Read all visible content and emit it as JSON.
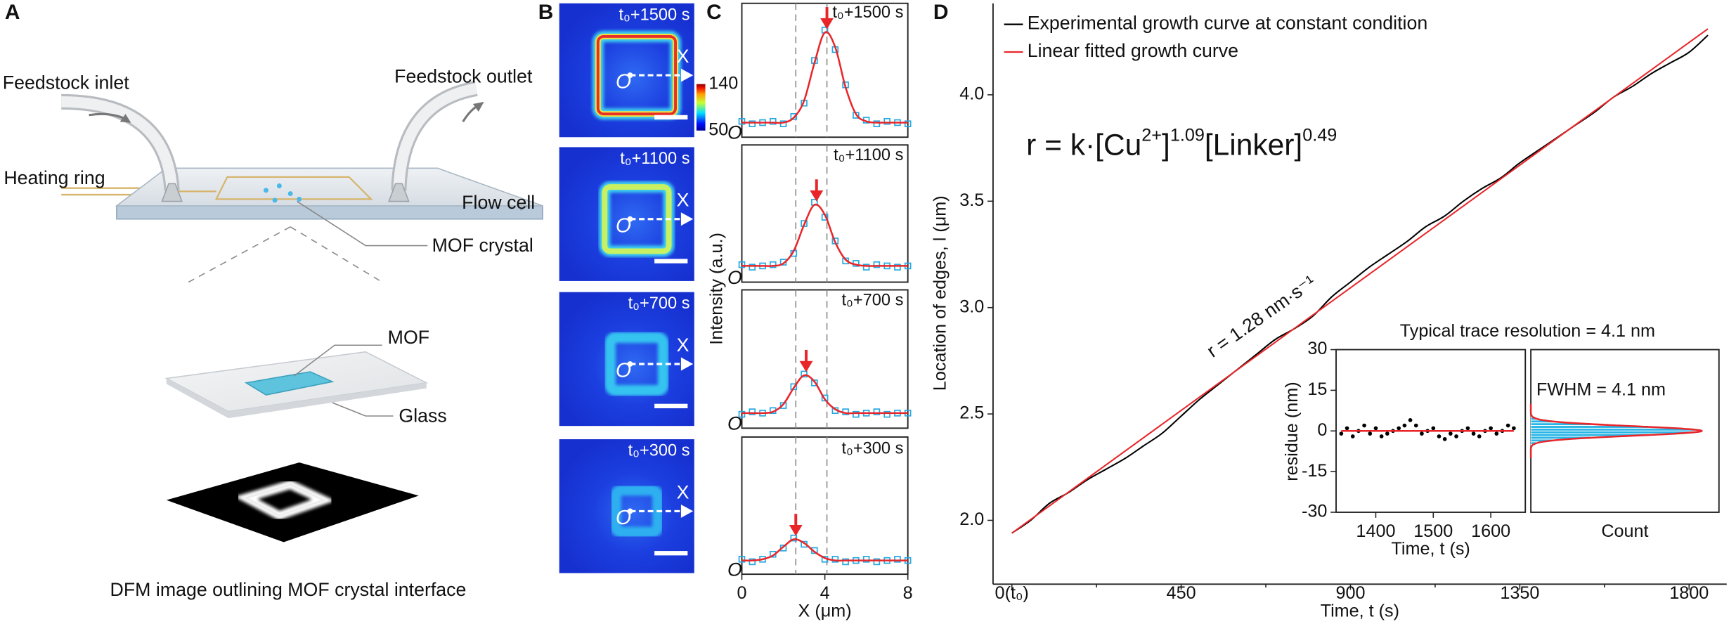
{
  "panel_labels": [
    "A",
    "B",
    "C",
    "D"
  ],
  "diagram": {
    "feedstock_inlet": "Feedstock inlet",
    "feedstock_outlet": "Feedstock outlet",
    "heating_ring": "Heating ring",
    "flow_cell": "Flow cell",
    "mof_crystal": "MOF crystal",
    "mof": "MOF",
    "glass": "Glass",
    "caption": "DFM image outlining MOF crystal interface"
  },
  "heatmaps": {
    "times": [
      "t₀+1500 s",
      "t₀+1100 s",
      "t₀+700 s",
      "t₀+300 s"
    ],
    "axis_label": "X",
    "origin_label": "O",
    "colorbar": {
      "clim": [
        50,
        140
      ],
      "ticks": [
        50,
        140
      ]
    }
  },
  "chart_data": [
    {
      "type": "line",
      "title": "t₀+1500 s",
      "ylabel": "Intensity (a.u.)",
      "origin_label": "O",
      "frame": true,
      "x": [
        0,
        0.5,
        1,
        1.5,
        2,
        2.5,
        3,
        3.5,
        4,
        4.5,
        5,
        5.5,
        6,
        6.5,
        7,
        7.5,
        8
      ],
      "xlim": [
        0,
        8
      ],
      "ylim": [
        0,
        1.1
      ],
      "markers": [
        2.6,
        4.1
      ],
      "peak_x": 4.1,
      "series": [
        {
          "color": "#29a9e0",
          "marker": "square",
          "values": [
            0.13,
            0.11,
            0.12,
            0.13,
            0.11,
            0.17,
            0.28,
            0.63,
            0.88,
            0.72,
            0.43,
            0.18,
            0.14,
            0.11,
            0.13,
            0.12,
            0.11
          ]
        },
        {
          "color": "#e8262a",
          "values": [
            0.12,
            0.12,
            0.12,
            0.12,
            0.12,
            0.16,
            0.3,
            0.61,
            0.86,
            0.74,
            0.41,
            0.19,
            0.13,
            0.12,
            0.12,
            0.12,
            0.12
          ]
        }
      ]
    },
    {
      "type": "line",
      "title": "t₀+1100 s",
      "origin_label": "O",
      "frame": true,
      "x": [
        0,
        0.5,
        1,
        1.5,
        2,
        2.5,
        3,
        3.5,
        4,
        4.5,
        5,
        5.5,
        6,
        6.5,
        7,
        7.5,
        8
      ],
      "xlim": [
        0,
        8
      ],
      "ylim": [
        0,
        1.1
      ],
      "markers": [
        2.6,
        4.1
      ],
      "peak_x": 3.6,
      "series": [
        {
          "color": "#29a9e0",
          "marker": "square",
          "values": [
            0.14,
            0.12,
            0.13,
            0.14,
            0.16,
            0.23,
            0.47,
            0.64,
            0.52,
            0.33,
            0.17,
            0.15,
            0.12,
            0.14,
            0.13,
            0.12,
            0.13
          ]
        },
        {
          "color": "#e8262a",
          "values": [
            0.13,
            0.13,
            0.13,
            0.13,
            0.15,
            0.25,
            0.46,
            0.62,
            0.54,
            0.32,
            0.18,
            0.14,
            0.13,
            0.13,
            0.13,
            0.13,
            0.13
          ]
        }
      ]
    },
    {
      "type": "line",
      "title": "t₀+700 s",
      "origin_label": "O",
      "frame": true,
      "x": [
        0,
        0.5,
        1,
        1.5,
        2,
        2.5,
        3,
        3.5,
        4,
        4.5,
        5,
        5.5,
        6,
        6.5,
        7,
        7.5,
        8
      ],
      "xlim": [
        0,
        8
      ],
      "ylim": [
        0,
        1.1
      ],
      "markers": [
        2.6,
        4.1
      ],
      "peak_x": 3.1,
      "series": [
        {
          "color": "#29a9e0",
          "marker": "square",
          "values": [
            0.11,
            0.13,
            0.12,
            0.14,
            0.18,
            0.33,
            0.43,
            0.36,
            0.24,
            0.14,
            0.13,
            0.11,
            0.12,
            0.13,
            0.11,
            0.12,
            0.12
          ]
        },
        {
          "color": "#e8262a",
          "values": [
            0.12,
            0.12,
            0.12,
            0.13,
            0.19,
            0.32,
            0.42,
            0.37,
            0.23,
            0.15,
            0.12,
            0.12,
            0.12,
            0.12,
            0.12,
            0.12,
            0.12
          ]
        }
      ]
    },
    {
      "type": "line",
      "title": "t₀+300 s",
      "origin_label": "O",
      "frame": true,
      "xlabel": "X (μm)",
      "xticks": [
        0,
        4,
        8
      ],
      "x": [
        0,
        0.5,
        1,
        1.5,
        2,
        2.5,
        3,
        3.5,
        4,
        4.5,
        5,
        5.5,
        6,
        6.5,
        7,
        7.5,
        8
      ],
      "xlim": [
        0,
        8
      ],
      "ylim": [
        0,
        1.1
      ],
      "markers": [
        2.6,
        4.1
      ],
      "peak_x": 2.6,
      "series": [
        {
          "color": "#29a9e0",
          "marker": "square",
          "values": [
            0.12,
            0.1,
            0.12,
            0.16,
            0.21,
            0.29,
            0.24,
            0.19,
            0.12,
            0.12,
            0.1,
            0.11,
            0.12,
            0.1,
            0.11,
            0.12,
            0.11
          ]
        },
        {
          "color": "#e8262a",
          "values": [
            0.11,
            0.11,
            0.12,
            0.15,
            0.22,
            0.28,
            0.25,
            0.18,
            0.13,
            0.11,
            0.11,
            0.11,
            0.11,
            0.11,
            0.11,
            0.11,
            0.11
          ]
        }
      ]
    },
    {
      "type": "line",
      "xlabel": "Time, t (s)",
      "ylabel": "Location of edges, l (μm)",
      "frame": false,
      "legend": "upper left",
      "equation": [
        "r = k·[Cu",
        "2+",
        "]",
        "1.09",
        "[Linker]",
        "0.49"
      ],
      "annotation": "r = 1.28 nm·s⁻¹",
      "xlim": [
        -50,
        1900
      ],
      "ylim": [
        1.7,
        4.43
      ],
      "xticks": [
        {
          "value": 0,
          "label": "0(t₀)"
        },
        450,
        900,
        1350,
        1800
      ],
      "xminor": [
        225,
        675,
        1125,
        1575
      ],
      "yticks": [
        {
          "value": 2,
          "label": "2.0"
        },
        2.5,
        {
          "value": 3,
          "label": "3.0"
        },
        3.5,
        {
          "value": 4,
          "label": "4.0"
        }
      ],
      "series": [
        {
          "name": "Experimental growth curve at constant condition",
          "color": "#000000",
          "x": [
            0,
            50,
            100,
            150,
            200,
            250,
            300,
            350,
            400,
            450,
            500,
            550,
            600,
            650,
            700,
            750,
            800,
            850,
            900,
            950,
            1000,
            1050,
            1100,
            1150,
            1200,
            1250,
            1300,
            1350,
            1400,
            1450,
            1500,
            1550,
            1600,
            1650,
            1700,
            1750,
            1800,
            1850
          ],
          "values": [
            1.94,
            2.0,
            2.08,
            2.13,
            2.19,
            2.24,
            2.29,
            2.35,
            2.41,
            2.49,
            2.57,
            2.64,
            2.71,
            2.78,
            2.85,
            2.9,
            2.96,
            3.05,
            3.12,
            3.19,
            3.25,
            3.31,
            3.38,
            3.43,
            3.5,
            3.56,
            3.61,
            3.68,
            3.74,
            3.8,
            3.86,
            3.92,
            3.99,
            4.04,
            4.1,
            4.15,
            4.2,
            4.28
          ]
        },
        {
          "name": "Linear fitted growth curve",
          "color": "#e8262a",
          "x": [
            0,
            1850
          ],
          "values": [
            1.94,
            4.31
          ]
        }
      ]
    },
    {
      "type": "scatter",
      "title": "Typical trace resolution = 4.1 nm",
      "xlabel": "Time, t (s)",
      "ylabel": "residue (nm)",
      "frame": true,
      "xlim": [
        1331,
        1660
      ],
      "ylim": [
        -30,
        30
      ],
      "xticks": [
        1400,
        1500,
        1600
      ],
      "yticks": [
        -30,
        -15,
        0,
        15,
        30
      ],
      "series": [
        {
          "color": "#000000",
          "marker": "dot",
          "x": [
            1340,
            1350,
            1360,
            1370,
            1380,
            1390,
            1400,
            1410,
            1420,
            1430,
            1440,
            1450,
            1460,
            1470,
            1480,
            1490,
            1500,
            1510,
            1520,
            1530,
            1540,
            1550,
            1560,
            1570,
            1580,
            1590,
            1600,
            1610,
            1620,
            1630,
            1640
          ],
          "values": [
            -1,
            1,
            -2,
            0,
            2,
            -1,
            1,
            -2,
            -1,
            0,
            1,
            2,
            4,
            2,
            -1,
            0,
            1,
            -2,
            -3,
            -1,
            -2,
            0,
            1,
            -1,
            -2,
            0,
            1,
            -1,
            0,
            2,
            1
          ]
        },
        {
          "color": "#e8262a",
          "x": [
            1340,
            1640
          ],
          "values": [
            0,
            0
          ]
        }
      ]
    },
    {
      "type": "histogram",
      "orientation": "horizontal",
      "annotation": "FWHM = 4.1 nm",
      "xlabel": "Count",
      "frame": true,
      "color": "#29b6e6",
      "xlim": [
        0,
        110
      ],
      "ylim": [
        -30,
        30
      ],
      "bins": [
        -10,
        -9,
        -8,
        -7,
        -6,
        -5,
        -4,
        -3,
        -2,
        -1,
        0,
        1,
        2,
        3,
        4,
        5,
        6,
        7,
        8,
        9,
        10
      ],
      "values": [
        0,
        0,
        0,
        0,
        1,
        3,
        13,
        35,
        69,
        96,
        96,
        69,
        35,
        13,
        3,
        1,
        0,
        0,
        0,
        0
      ],
      "fit": {
        "color": "#e8262a",
        "y": [
          -10,
          -9,
          -8,
          -7,
          -6,
          -5,
          -4,
          -3,
          -2,
          -1,
          0,
          1,
          2,
          3,
          4,
          5,
          6,
          7,
          8,
          9,
          10
        ],
        "values": [
          0,
          0,
          0,
          0,
          0.2,
          1.5,
          6.9,
          22.3,
          51.3,
          84.6,
          100,
          84.6,
          51.3,
          22.3,
          6.9,
          1.5,
          0.2,
          0,
          0,
          0,
          0
        ]
      }
    }
  ]
}
